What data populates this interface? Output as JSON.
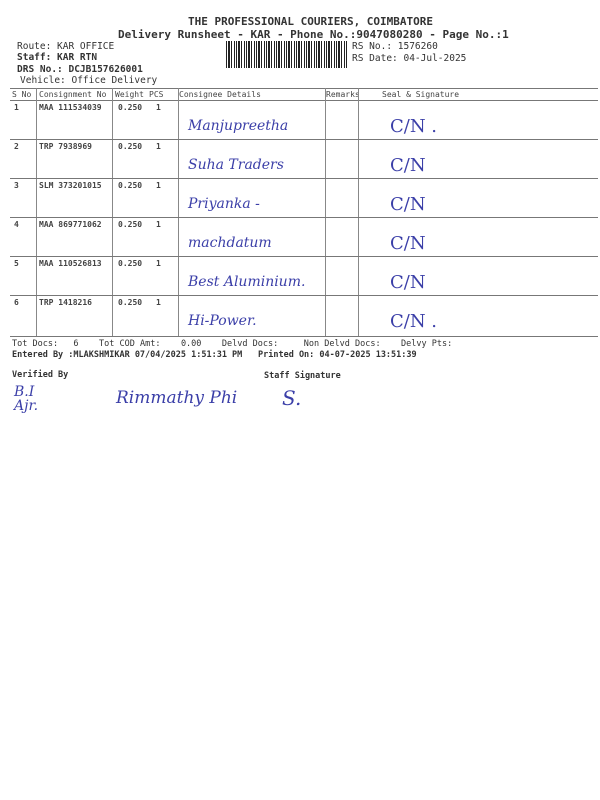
{
  "header": {
    "company": "THE PROFESSIONAL COURIERS, COIMBATORE",
    "subtitle": "Delivery Runsheet - KAR - Phone No.:9047080280 - Page No.:1",
    "route": "Route: KAR OFFICE",
    "staff": "Staff: KAR RTN",
    "drs_no": "DRS No.: DCJB157626001",
    "vehicle": "Vehicle: Office Delivery",
    "rs_no": "RS No.: 1576260",
    "rs_date": "RS Date: 04-Jul-2025"
  },
  "table": {
    "columns": [
      "S No",
      "Consignment No",
      "Weight",
      "PCS",
      "Consignee Details",
      "Remarks",
      "Seal & Signature"
    ],
    "rows": [
      {
        "sno": "1",
        "consignment": "MAA 111534039",
        "weight": "0.250",
        "pcs": "1",
        "consignee": "Manjupreetha",
        "seal": "C/N ."
      },
      {
        "sno": "2",
        "consignment": "TRP 7938969",
        "weight": "0.250",
        "pcs": "1",
        "consignee": "Suha Traders",
        "seal": "C/N"
      },
      {
        "sno": "3",
        "consignment": "SLM 373201015",
        "weight": "0.250",
        "pcs": "1",
        "consignee": "Priyanka -",
        "seal": "C/N"
      },
      {
        "sno": "4",
        "consignment": "MAA 869771062",
        "weight": "0.250",
        "pcs": "1",
        "consignee": "machdatum",
        "seal": "C/N"
      },
      {
        "sno": "5",
        "consignment": "MAA 110526813",
        "weight": "0.250",
        "pcs": "1",
        "consignee": "Best Aluminium.",
        "seal": "C/N"
      },
      {
        "sno": "6",
        "consignment": "TRP 1418216",
        "weight": "0.250",
        "pcs": "1",
        "consignee": "Hi-Power.",
        "seal": "C/N ."
      }
    ]
  },
  "footer": {
    "tot_docs_label": "Tot Docs:",
    "tot_docs": "6",
    "tot_cod_label": "Tot COD Amt:",
    "tot_cod": "0.00",
    "delvd_docs": "Delvd Docs:",
    "non_delvd_docs": "Non Delvd Docs:",
    "delvy_pts": "Delvy Pts:",
    "entered_by": "Entered By :MLAKSHMIKAR 07/04/2025 1:51:31 PM",
    "printed_on": "Printed On: 04-07-2025 13:51:39",
    "verified_by": "Verified By",
    "staff_signature": "Staff Signature",
    "signature_1": "B.I Ajr.",
    "signature_2": "Rimmathy Phi",
    "signature_3": "S."
  },
  "colors": {
    "ink": "#3b3fa8",
    "print": "#333333"
  }
}
